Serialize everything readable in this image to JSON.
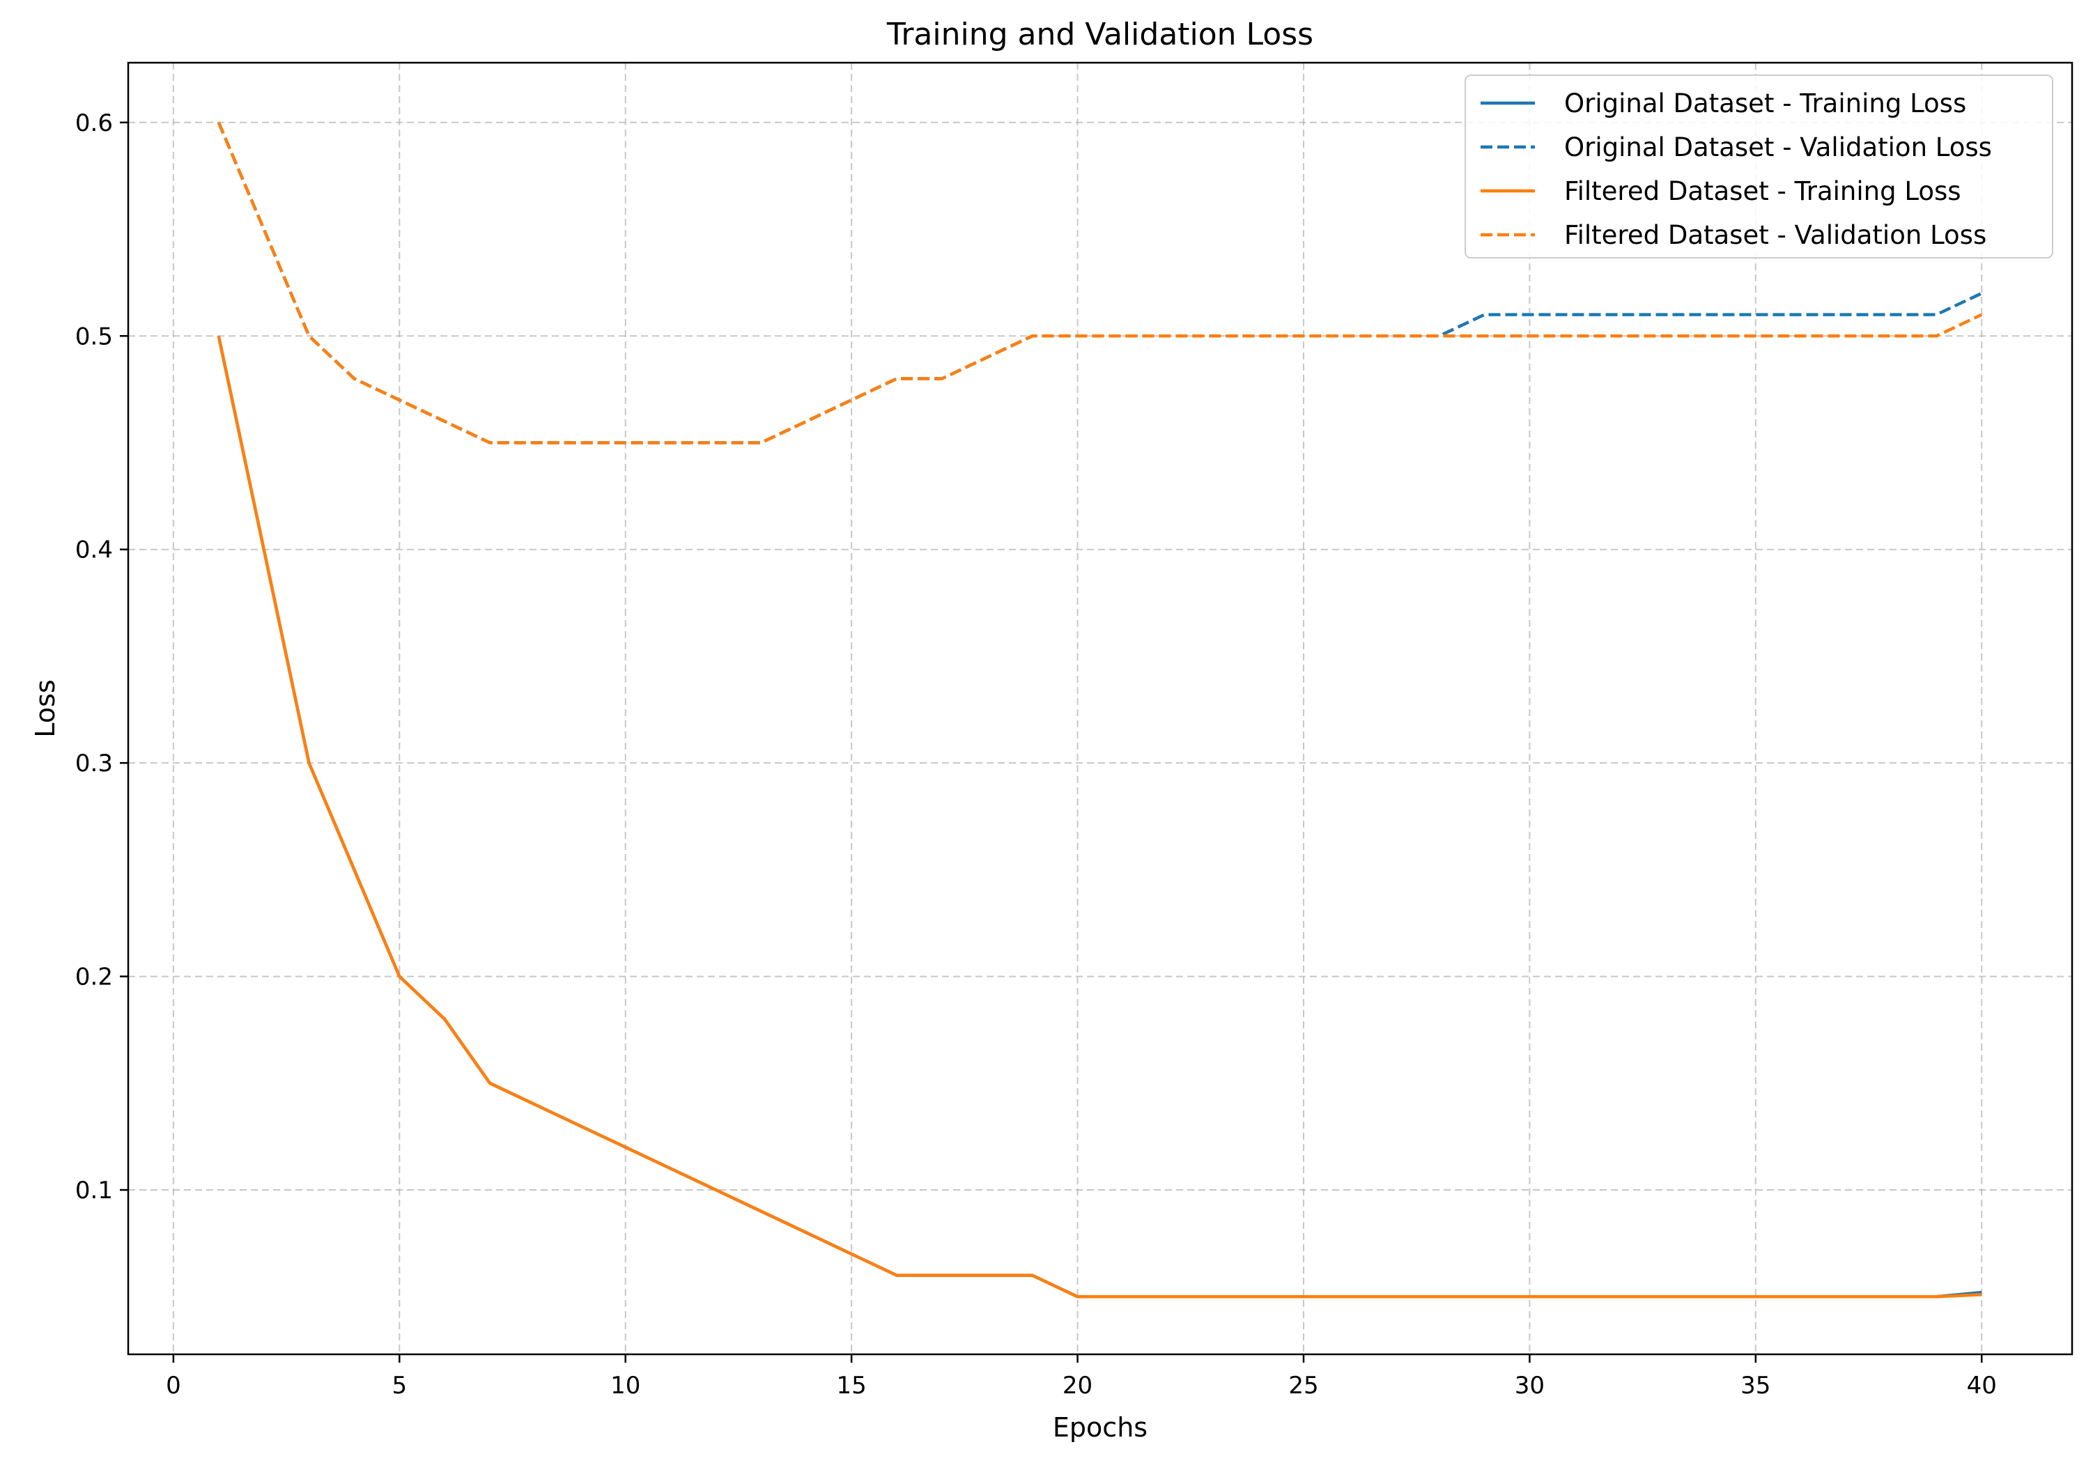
{
  "chart_data": {
    "type": "line",
    "title": "Training and Validation Loss",
    "xlabel": "Epochs",
    "ylabel": "Loss",
    "xlim": [
      -1,
      42
    ],
    "ylim": [
      0.023,
      0.628
    ],
    "xticks": [
      0,
      5,
      10,
      15,
      20,
      25,
      30,
      35,
      40
    ],
    "yticks": [
      0.1,
      0.2,
      0.3,
      0.4,
      0.5,
      0.6
    ],
    "xtick_labels": [
      "0",
      "5",
      "10",
      "15",
      "20",
      "25",
      "30",
      "35",
      "40"
    ],
    "ytick_labels": [
      "0.1",
      "0.2",
      "0.3",
      "0.4",
      "0.5",
      "0.6"
    ],
    "grid": true,
    "legend_position": "top-right",
    "x": [
      1,
      2,
      3,
      4,
      5,
      6,
      7,
      8,
      9,
      10,
      11,
      12,
      13,
      14,
      15,
      16,
      17,
      18,
      19,
      20,
      21,
      22,
      23,
      24,
      25,
      26,
      27,
      28,
      29,
      30,
      31,
      32,
      33,
      34,
      35,
      36,
      37,
      38,
      39,
      40
    ],
    "series": [
      {
        "name": "Original Dataset - Training Loss",
        "color": "#1f77b4",
        "linestyle": "solid",
        "values": [
          0.5,
          0.4,
          0.3,
          0.25,
          0.2,
          0.18,
          0.15,
          0.14,
          0.13,
          0.12,
          0.11,
          0.1,
          0.09,
          0.08,
          0.07,
          0.06,
          0.06,
          0.06,
          0.06,
          0.05,
          0.05,
          0.05,
          0.05,
          0.05,
          0.05,
          0.05,
          0.05,
          0.05,
          0.05,
          0.05,
          0.05,
          0.05,
          0.05,
          0.05,
          0.05,
          0.05,
          0.05,
          0.05,
          0.05,
          0.052
        ]
      },
      {
        "name": "Original Dataset - Validation Loss",
        "color": "#1f77b4",
        "linestyle": "dashed",
        "values": [
          0.6,
          0.55,
          0.5,
          0.48,
          0.47,
          0.46,
          0.45,
          0.45,
          0.45,
          0.45,
          0.45,
          0.45,
          0.45,
          0.46,
          0.47,
          0.48,
          0.48,
          0.49,
          0.5,
          0.5,
          0.5,
          0.5,
          0.5,
          0.5,
          0.5,
          0.5,
          0.5,
          0.5,
          0.51,
          0.51,
          0.51,
          0.51,
          0.51,
          0.51,
          0.51,
          0.51,
          0.51,
          0.51,
          0.51,
          0.52
        ]
      },
      {
        "name": "Filtered Dataset - Training Loss",
        "color": "#ff7f0e",
        "linestyle": "solid",
        "values": [
          0.5,
          0.4,
          0.3,
          0.25,
          0.2,
          0.18,
          0.15,
          0.14,
          0.13,
          0.12,
          0.11,
          0.1,
          0.09,
          0.08,
          0.07,
          0.06,
          0.06,
          0.06,
          0.06,
          0.05,
          0.05,
          0.05,
          0.05,
          0.05,
          0.05,
          0.05,
          0.05,
          0.05,
          0.05,
          0.05,
          0.05,
          0.05,
          0.05,
          0.05,
          0.05,
          0.05,
          0.05,
          0.05,
          0.05,
          0.051
        ]
      },
      {
        "name": "Filtered Dataset - Validation Loss",
        "color": "#ff7f0e",
        "linestyle": "dashed",
        "values": [
          0.6,
          0.55,
          0.5,
          0.48,
          0.47,
          0.46,
          0.45,
          0.45,
          0.45,
          0.45,
          0.45,
          0.45,
          0.45,
          0.46,
          0.47,
          0.48,
          0.48,
          0.49,
          0.5,
          0.5,
          0.5,
          0.5,
          0.5,
          0.5,
          0.5,
          0.5,
          0.5,
          0.5,
          0.5,
          0.5,
          0.5,
          0.5,
          0.5,
          0.5,
          0.5,
          0.5,
          0.5,
          0.5,
          0.5,
          0.51
        ]
      }
    ]
  }
}
